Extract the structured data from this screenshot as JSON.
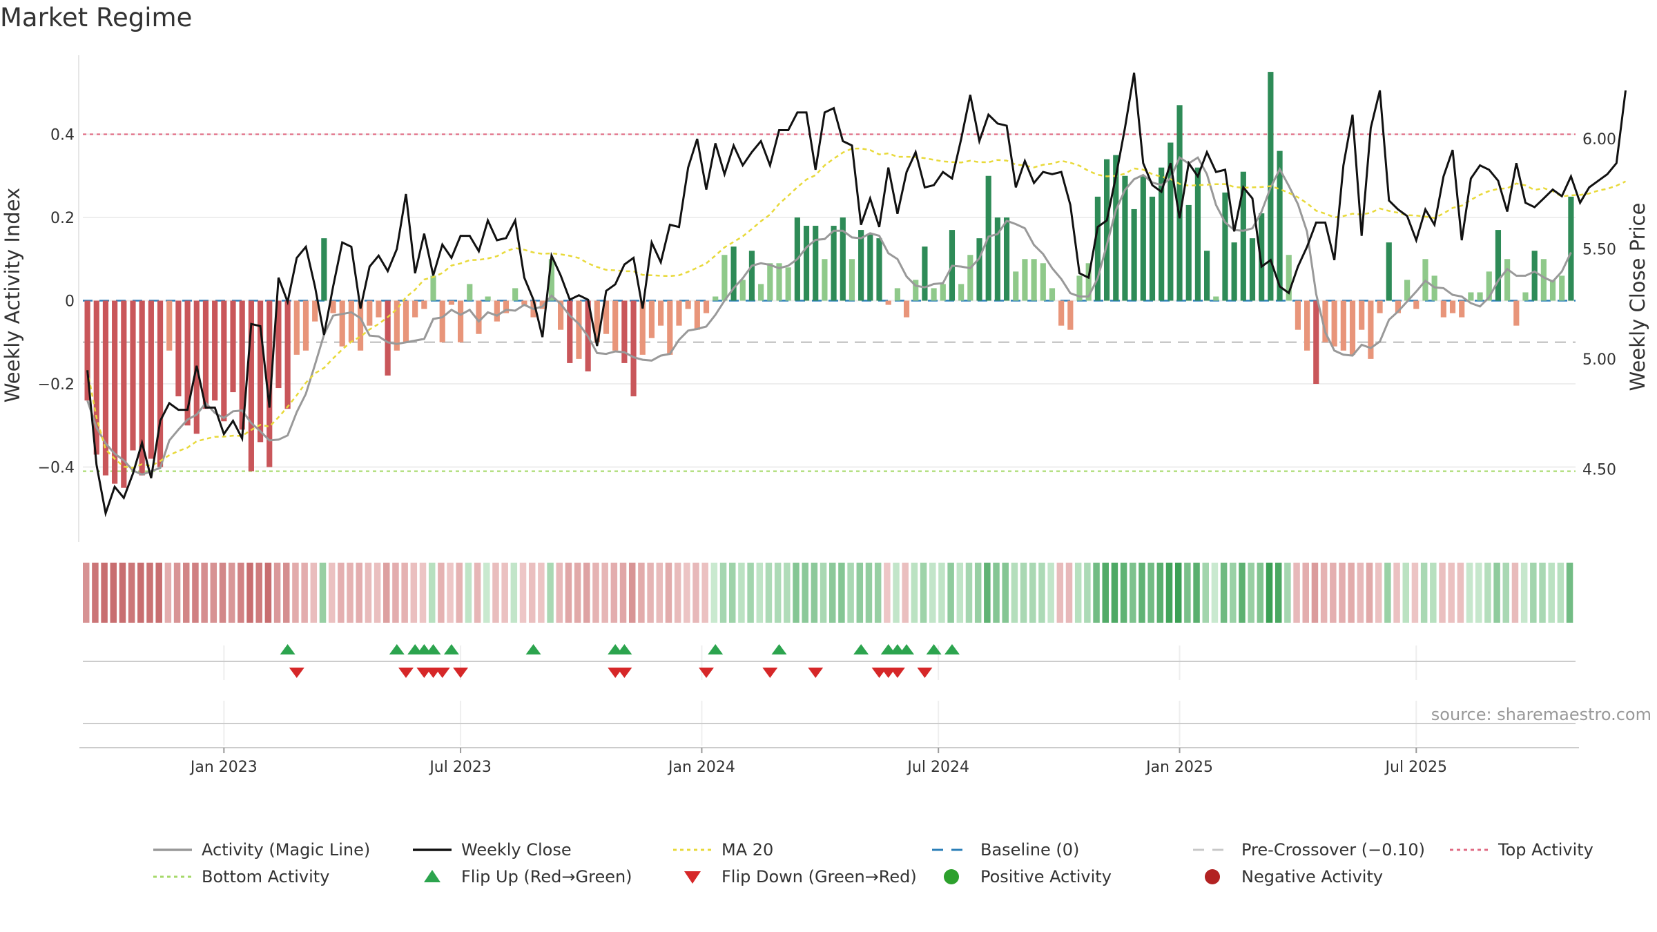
{
  "title": "Market Regime",
  "source": "source: sharemaestro.com",
  "chart_data": {
    "type": "bar+line",
    "title": "Market Regime",
    "ylabel_left": "Weekly Activity Index",
    "ylabel_right": "Weekly Close Price",
    "left_ticks": [
      {
        "value": 0.4,
        "label": "0.4"
      },
      {
        "value": 0.2,
        "label": "0.2"
      },
      {
        "value": 0,
        "label": "0"
      },
      {
        "value": -0.2,
        "label": "−0.2"
      },
      {
        "value": -0.4,
        "label": "−0.4"
      }
    ],
    "right_ticks": [
      {
        "value": 6.0,
        "label": "6.00"
      },
      {
        "value": 5.5,
        "label": "5.50"
      },
      {
        "value": 5.0,
        "label": "5.00"
      },
      {
        "value": 4.5,
        "label": "4.50"
      }
    ],
    "left_ylim": [
      -0.58,
      0.59
    ],
    "right_ylim": [
      4.17,
      6.38
    ],
    "x_ticks": [
      {
        "week": 0,
        "label": "Jan 2023"
      },
      {
        "week": 26,
        "label": "Jul 2023"
      },
      {
        "week": 52.5,
        "label": "Jan 2024"
      },
      {
        "week": 78.5,
        "label": "Jul 2024"
      },
      {
        "week": 105,
        "label": "Jan 2025"
      },
      {
        "week": 131,
        "label": "Jul 2025"
      }
    ],
    "first_week_offset": -15,
    "reference_lines": {
      "top_activity": 0.4,
      "bottom_activity": -0.41,
      "pre_crossover": -0.1,
      "baseline": 0
    },
    "colors": {
      "strong_pos": "#2e8b57",
      "weak_pos": "#8fc98a",
      "strong_neg": "#c9565a",
      "weak_neg": "#e8957a",
      "close": "#111111",
      "magic": "#999999",
      "ma20": "#e8d93a",
      "baseline": "#2c7fb8",
      "pre": "#c8c8c8",
      "top": "#e06c84",
      "bottom": "#a6d96a",
      "flip_up": "#2ca44e",
      "flip_down": "#d62728",
      "pos_dot": "#2ca02c",
      "neg_dot": "#b22222"
    },
    "activity": [
      -0.24,
      -0.37,
      -0.42,
      -0.44,
      -0.45,
      -0.36,
      -0.42,
      -0.38,
      -0.4,
      -0.12,
      -0.23,
      -0.3,
      -0.32,
      -0.26,
      -0.24,
      -0.29,
      -0.22,
      -0.31,
      -0.41,
      -0.34,
      -0.4,
      -0.21,
      -0.26,
      -0.13,
      -0.12,
      -0.05,
      0.15,
      -0.03,
      -0.11,
      -0.1,
      -0.12,
      -0.06,
      -0.04,
      -0.18,
      -0.12,
      -0.1,
      -0.04,
      -0.02,
      0.06,
      -0.1,
      -0.01,
      -0.1,
      0.04,
      -0.08,
      0.01,
      -0.05,
      -0.03,
      0.03,
      -0.01,
      -0.04,
      -0.02,
      0.1,
      -0.07,
      -0.15,
      -0.14,
      -0.17,
      -0.1,
      -0.08,
      -0.12,
      -0.15,
      -0.23,
      -0.13,
      -0.09,
      -0.06,
      -0.13,
      -0.06,
      -0.02,
      -0.07,
      -0.03,
      0.01,
      0.11,
      0.13,
      0.05,
      0.12,
      0.04,
      0.09,
      0.09,
      0.08,
      0.2,
      0.18,
      0.18,
      0.1,
      0.18,
      0.2,
      0.1,
      0.17,
      0.16,
      0.15,
      -0.01,
      0.03,
      -0.04,
      0.05,
      0.13,
      0.03,
      0.04,
      0.17,
      0.04,
      0.11,
      0.15,
      0.3,
      0.2,
      0.2,
      0.07,
      0.1,
      0.1,
      0.09,
      0.03,
      -0.06,
      -0.07,
      0.06,
      0.09,
      0.25,
      0.34,
      0.35,
      0.3,
      0.22,
      0.3,
      0.25,
      0.32,
      0.38,
      0.47,
      0.23,
      0.32,
      0.12,
      0.01,
      0.26,
      0.14,
      0.31,
      0.15,
      0.21,
      0.55,
      0.36,
      0.11,
      -0.07,
      -0.12,
      -0.2,
      -0.1,
      -0.11,
      -0.12,
      -0.13,
      -0.07,
      -0.14,
      -0.03,
      0.14,
      -0.03,
      0.05,
      -0.02,
      0.1,
      0.06,
      -0.04,
      -0.03,
      -0.04,
      0.02,
      0.02,
      0.07,
      0.17,
      0.1,
      -0.06,
      0.02,
      0.12,
      0.1,
      0.05,
      0.06,
      0.25
    ],
    "weekly_close": [
      4.95,
      4.52,
      4.3,
      4.42,
      4.37,
      4.48,
      4.62,
      4.46,
      4.72,
      4.8,
      4.77,
      4.77,
      4.97,
      4.78,
      4.78,
      4.66,
      4.72,
      4.64,
      5.16,
      5.15,
      4.78,
      5.37,
      5.26,
      5.46,
      5.51,
      5.33,
      5.11,
      5.33,
      5.53,
      5.51,
      5.23,
      5.42,
      5.47,
      5.4,
      5.5,
      5.75,
      5.39,
      5.57,
      5.38,
      5.52,
      5.46,
      5.56,
      5.56,
      5.49,
      5.63,
      5.54,
      5.55,
      5.63,
      5.37,
      5.27,
      5.1,
      5.47,
      5.38,
      5.27,
      5.29,
      5.27,
      5.06,
      5.31,
      5.34,
      5.43,
      5.46,
      5.23,
      5.53,
      5.44,
      5.61,
      5.6,
      5.87,
      6.0,
      5.77,
      5.98,
      5.84,
      5.97,
      5.88,
      5.94,
      5.99,
      5.88,
      6.04,
      6.04,
      6.12,
      6.12,
      5.86,
      6.12,
      6.14,
      5.99,
      5.97,
      5.61,
      5.73,
      5.6,
      5.87,
      5.66,
      5.85,
      5.94,
      5.78,
      5.79,
      5.85,
      5.82,
      6.0,
      6.2,
      5.99,
      6.11,
      6.07,
      6.06,
      5.78,
      5.9,
      5.8,
      5.85,
      5.84,
      5.85,
      5.7,
      5.39,
      5.37,
      5.6,
      5.63,
      5.83,
      6.05,
      6.3,
      5.89,
      5.79,
      5.76,
      5.89,
      5.64,
      5.89,
      5.83,
      5.94,
      5.85,
      5.86,
      5.58,
      5.78,
      5.73,
      5.42,
      5.45,
      5.33,
      5.3,
      5.42,
      5.51,
      5.62,
      5.62,
      5.45,
      5.88,
      6.11,
      5.56,
      6.05,
      6.22,
      5.72,
      5.68,
      5.65,
      5.54,
      5.68,
      5.61,
      5.83,
      5.95,
      5.54,
      5.82,
      5.88,
      5.86,
      5.81,
      5.67,
      5.89,
      5.71,
      5.69,
      5.73,
      5.77,
      5.74,
      5.83,
      5.71,
      5.78,
      5.81,
      5.84,
      5.89,
      6.22
    ],
    "flip_up_weeks": [
      7,
      19,
      21,
      22,
      23,
      25,
      34,
      43,
      44,
      54,
      61,
      70,
      73,
      74,
      75,
      78,
      80
    ],
    "flip_down_weeks": [
      8,
      20,
      22,
      23,
      24,
      26,
      43,
      44,
      53,
      60,
      65,
      72,
      73,
      74,
      77
    ],
    "legend": [
      {
        "label": "Activity (Magic Line)",
        "style": "line",
        "color": "#999999"
      },
      {
        "label": "Weekly Close",
        "style": "line",
        "color": "#111111"
      },
      {
        "label": "MA 20",
        "style": "dotted",
        "color": "#e8d93a"
      },
      {
        "label": "Baseline (0)",
        "style": "dashed",
        "color": "#2c7fb8"
      },
      {
        "label": "Pre-Crossover (−0.10)",
        "style": "dashed",
        "color": "#c8c8c8"
      },
      {
        "label": "Top Activity",
        "style": "dotted",
        "color": "#e06c84"
      },
      {
        "label": "Bottom Activity",
        "style": "dotted",
        "color": "#a6d96a"
      },
      {
        "label": "Flip Up (Red→Green)",
        "style": "triangle-up",
        "color": "#2ca44e"
      },
      {
        "label": "Flip Down (Green→Red)",
        "style": "triangle-down",
        "color": "#d62728"
      },
      {
        "label": "Positive Activity",
        "style": "dot",
        "color": "#2ca02c"
      },
      {
        "label": "Negative Activity",
        "style": "dot",
        "color": "#b22222"
      }
    ]
  }
}
